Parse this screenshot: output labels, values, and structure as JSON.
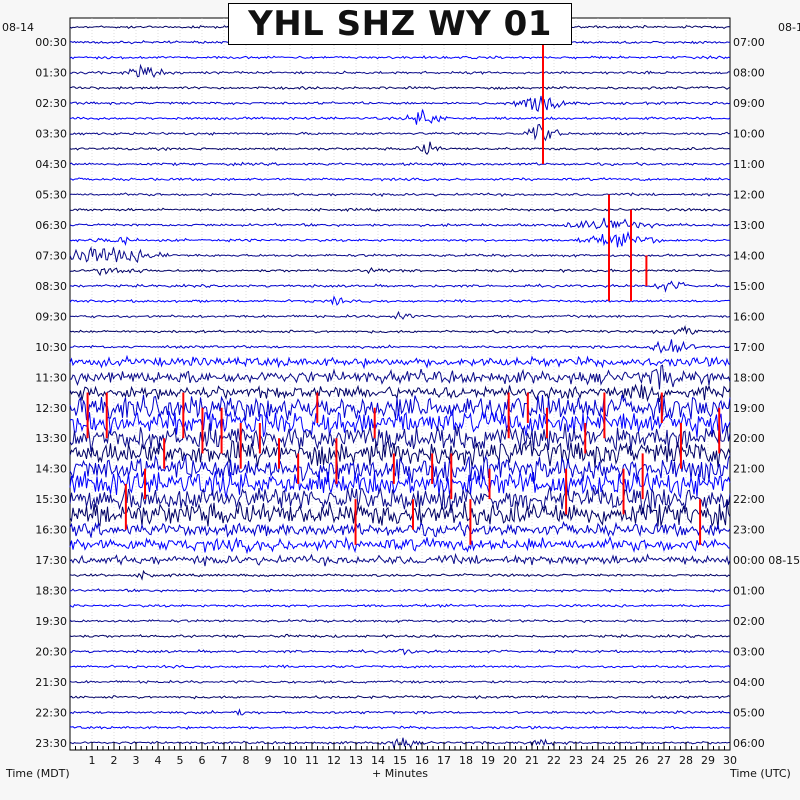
{
  "title": "YHL SHZ WY 01",
  "left_date": "08-14",
  "right_date": "08-1",
  "left_axis_title": "Time (MDT)",
  "right_axis_title": "Time (UTC)",
  "x_axis_title": "+ Minutes",
  "colors": {
    "trace_colors": [
      "#000066",
      "#0000cc",
      "#0000ff",
      "#0a0a8a"
    ],
    "clip_color": "#ff0000",
    "background": "#ffffff",
    "page_background": "#f7f7f7"
  },
  "chart_data": {
    "type": "helicorder",
    "station": "YHL",
    "channel": "SHZ",
    "network": "WY",
    "location": "01",
    "x_ticks": [
      1,
      2,
      3,
      4,
      5,
      6,
      7,
      8,
      9,
      10,
      11,
      12,
      13,
      14,
      15,
      16,
      17,
      18,
      19,
      20,
      21,
      22,
      23,
      24,
      25,
      26,
      27,
      28,
      29,
      30
    ],
    "xlim": [
      0,
      30
    ],
    "left_ticks": [
      "00:30",
      "01:30",
      "02:30",
      "03:30",
      "04:30",
      "05:30",
      "06:30",
      "07:30",
      "08:30",
      "09:30",
      "10:30",
      "11:30",
      "12:30",
      "13:30",
      "14:30",
      "15:30",
      "16:30",
      "17:30",
      "18:30",
      "19:30",
      "20:30",
      "21:30",
      "22:30",
      "23:30"
    ],
    "right_ticks": [
      "07:00",
      "08:00",
      "09:00",
      "10:00",
      "11:00",
      "12:00",
      "13:00",
      "14:00",
      "15:00",
      "16:00",
      "17:00",
      "18:00",
      "19:00",
      "20:00",
      "21:00",
      "22:00",
      "23:00",
      "00:00 08-15",
      "01:00",
      "02:00",
      "03:00",
      "04:00",
      "05:00",
      "06:00"
    ],
    "traces_per_hour": 2,
    "trace_count": 48,
    "noisy_hours_mdt": [
      "10:30",
      "16:30"
    ],
    "clipped_events_hours_mdt": [
      "12:00",
      "16:30"
    ]
  }
}
